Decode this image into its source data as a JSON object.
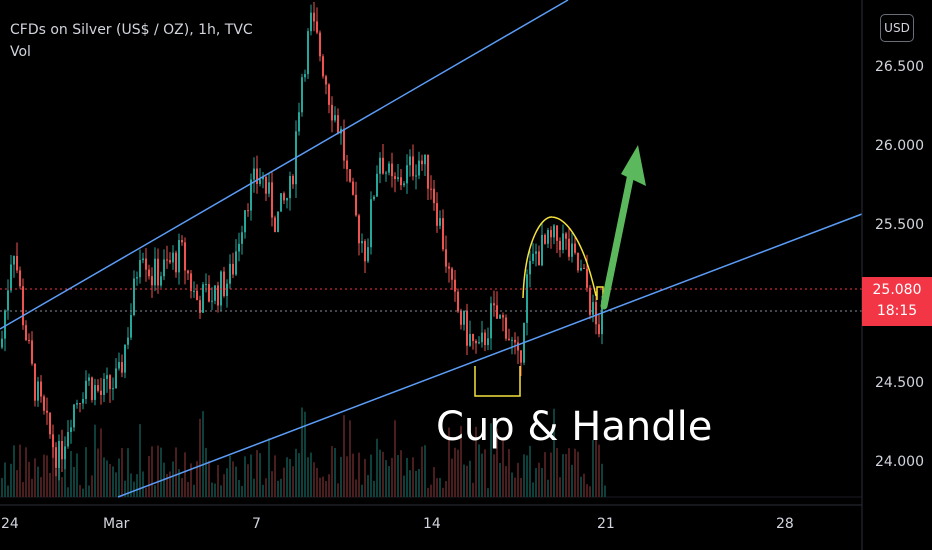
{
  "header": {
    "symbol_title": "CFDs on Silver (US$ / OZ), 1h, TVC",
    "volume_label": "Vol",
    "currency_button": "USD"
  },
  "price_tag": {
    "price": "25.080",
    "countdown": "18:15"
  },
  "annotation": {
    "text": "Cup & Handle"
  },
  "colors": {
    "up": "#26a69a",
    "down": "#ef5350",
    "trendline": "#5b9cf6",
    "cup": "#f5e33b",
    "arrow": "#5cb85c",
    "price_line": "#f23645"
  },
  "chart_data": {
    "type": "candlestick",
    "ylim": [
      23.78,
      26.97
    ],
    "y_ticks": [
      "26.500",
      "26.000",
      "25.500",
      "24.500",
      "24.000"
    ],
    "x_ticks": [
      "24",
      "Mar",
      "7",
      "14",
      "21",
      "28"
    ],
    "close_path": [
      [
        0,
        24.75
      ],
      [
        12,
        25.45
      ],
      [
        22,
        24.95
      ],
      [
        32,
        24.55
      ],
      [
        45,
        24.25
      ],
      [
        58,
        24.05
      ],
      [
        70,
        24.35
      ],
      [
        85,
        24.55
      ],
      [
        100,
        24.45
      ],
      [
        118,
        24.55
      ],
      [
        132,
        25.05
      ],
      [
        140,
        25.45
      ],
      [
        150,
        25.2
      ],
      [
        165,
        25.25
      ],
      [
        180,
        25.35
      ],
      [
        195,
        25.05
      ],
      [
        215,
        25.1
      ],
      [
        230,
        25.2
      ],
      [
        245,
        25.7
      ],
      [
        260,
        25.85
      ],
      [
        275,
        25.55
      ],
      [
        290,
        25.75
      ],
      [
        300,
        26.45
      ],
      [
        310,
        26.8
      ],
      [
        320,
        26.6
      ],
      [
        330,
        26.3
      ],
      [
        340,
        26.1
      ],
      [
        350,
        25.65
      ],
      [
        365,
        25.35
      ],
      [
        378,
        26.0
      ],
      [
        392,
        25.75
      ],
      [
        405,
        25.85
      ],
      [
        418,
        25.95
      ],
      [
        430,
        25.8
      ],
      [
        440,
        25.5
      ],
      [
        452,
        25.05
      ],
      [
        465,
        24.85
      ],
      [
        478,
        24.7
      ],
      [
        490,
        24.95
      ],
      [
        505,
        24.9
      ],
      [
        518,
        24.6
      ],
      [
        525,
        25.15
      ],
      [
        535,
        25.35
      ],
      [
        548,
        25.4
      ],
      [
        560,
        25.45
      ],
      [
        572,
        25.3
      ],
      [
        585,
        25.15
      ],
      [
        596,
        24.85
      ],
      [
        606,
        25.05
      ]
    ],
    "current_price": 25.08,
    "reference_line": 24.88,
    "trendlines": [
      {
        "name": "upper",
        "from": [
          0,
          24.85
        ],
        "to": [
          568,
          26.97
        ]
      },
      {
        "name": "lower",
        "from": [
          118,
          23.78
        ],
        "to": [
          862,
          25.53
        ]
      }
    ],
    "pattern": "Cup & Handle"
  }
}
